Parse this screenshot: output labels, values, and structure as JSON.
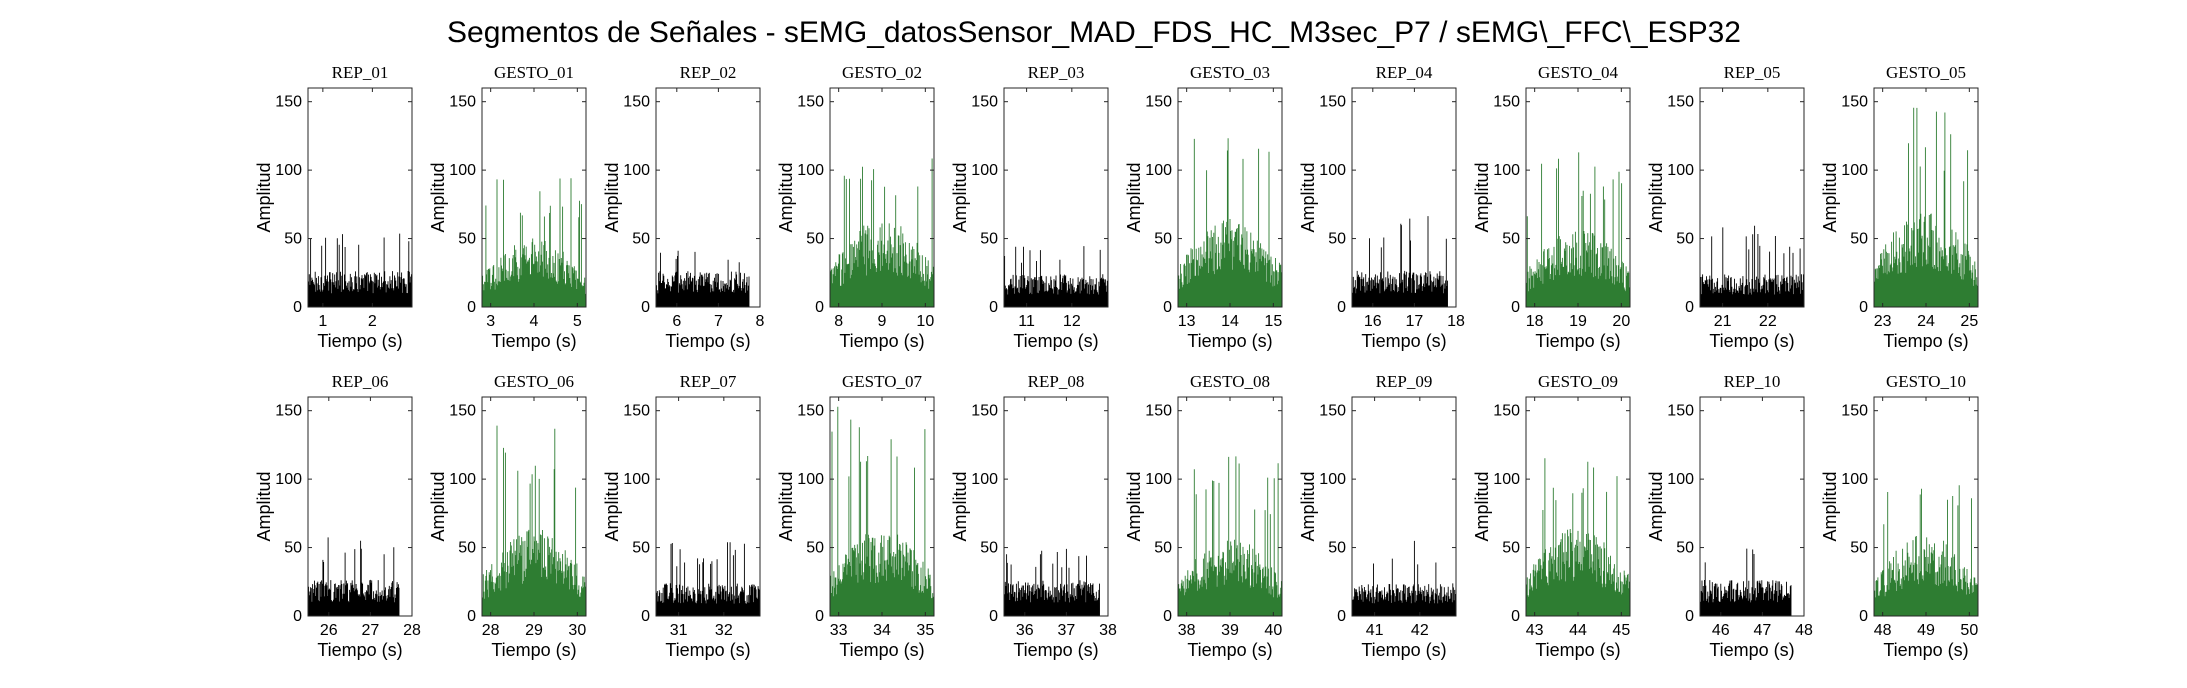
{
  "chart_data": {
    "type": "bar",
    "title": "Segmentos de Señales - sEMG_datosSensor_MAD_FDS_HC_M3sec_P7 / sEMG\\_FFC\\_ESP32",
    "xlabel": "Tiempo (s)",
    "ylabel": "Amplitud",
    "ylim": [
      0,
      160
    ],
    "yticks": [
      0,
      50,
      100,
      150
    ],
    "grid": false,
    "colors": {
      "rep": "#000000",
      "gesto": "#2e7d32"
    },
    "panels": [
      {
        "name": "REP_01",
        "kind": "rep",
        "xlim": [
          0.7,
          2.8
        ],
        "xticks": [
          1,
          2
        ],
        "base": 22,
        "peak": 60,
        "end": 2.8
      },
      {
        "name": "GESTO_01",
        "kind": "gesto",
        "xlim": [
          2.8,
          5.2
        ],
        "xticks": [
          3,
          4,
          5
        ],
        "base": 35,
        "peak": 95,
        "end": 5.2
      },
      {
        "name": "REP_02",
        "kind": "rep",
        "xlim": [
          5.5,
          8.0
        ],
        "xticks": [
          6,
          7,
          8
        ],
        "base": 22,
        "peak": 45,
        "end": 7.75
      },
      {
        "name": "GESTO_02",
        "kind": "gesto",
        "xlim": [
          7.8,
          10.2
        ],
        "xticks": [
          8,
          9,
          10
        ],
        "base": 45,
        "peak": 112,
        "end": 10.2
      },
      {
        "name": "REP_03",
        "kind": "rep",
        "xlim": [
          10.5,
          12.8
        ],
        "xticks": [
          11,
          12
        ],
        "base": 20,
        "peak": 45,
        "end": 12.8
      },
      {
        "name": "GESTO_03",
        "kind": "gesto",
        "xlim": [
          12.8,
          15.2
        ],
        "xticks": [
          13,
          14,
          15
        ],
        "base": 45,
        "peak": 133,
        "end": 15.2
      },
      {
        "name": "REP_04",
        "kind": "rep",
        "xlim": [
          15.5,
          18.0
        ],
        "xticks": [
          16,
          17,
          18
        ],
        "base": 22,
        "peak": 67,
        "end": 17.8
      },
      {
        "name": "GESTO_04",
        "kind": "gesto",
        "xlim": [
          17.8,
          20.2
        ],
        "xticks": [
          18,
          19,
          20
        ],
        "base": 40,
        "peak": 113,
        "end": 20.2
      },
      {
        "name": "REP_05",
        "kind": "rep",
        "xlim": [
          20.5,
          22.8
        ],
        "xticks": [
          21,
          22
        ],
        "base": 20,
        "peak": 60,
        "end": 22.8
      },
      {
        "name": "GESTO_05",
        "kind": "gesto",
        "xlim": [
          22.8,
          25.2
        ],
        "xticks": [
          23,
          24,
          25
        ],
        "base": 50,
        "peak": 148,
        "end": 25.2
      },
      {
        "name": "REP_06",
        "kind": "rep",
        "xlim": [
          25.5,
          28.0
        ],
        "xticks": [
          26,
          27,
          28
        ],
        "base": 22,
        "peak": 60,
        "end": 27.7
      },
      {
        "name": "GESTO_06",
        "kind": "gesto",
        "xlim": [
          27.8,
          30.2
        ],
        "xticks": [
          28,
          29,
          30
        ],
        "base": 45,
        "peak": 140,
        "end": 30.2
      },
      {
        "name": "REP_07",
        "kind": "rep",
        "xlim": [
          30.5,
          32.8
        ],
        "xticks": [
          31,
          32
        ],
        "base": 20,
        "peak": 55,
        "end": 32.8
      },
      {
        "name": "GESTO_07",
        "kind": "gesto",
        "xlim": [
          32.8,
          35.2
        ],
        "xticks": [
          33,
          34,
          35
        ],
        "base": 45,
        "peak": 155,
        "end": 35.2
      },
      {
        "name": "REP_08",
        "kind": "rep",
        "xlim": [
          35.5,
          38.0
        ],
        "xticks": [
          36,
          37,
          38
        ],
        "base": 22,
        "peak": 50,
        "end": 37.8
      },
      {
        "name": "GESTO_08",
        "kind": "gesto",
        "xlim": [
          37.8,
          40.2
        ],
        "xticks": [
          38,
          39,
          40
        ],
        "base": 40,
        "peak": 120,
        "end": 40.2
      },
      {
        "name": "REP_09",
        "kind": "rep",
        "xlim": [
          40.5,
          42.8
        ],
        "xticks": [
          41,
          42
        ],
        "base": 20,
        "peak": 55,
        "end": 42.8
      },
      {
        "name": "GESTO_09",
        "kind": "gesto",
        "xlim": [
          42.8,
          45.2
        ],
        "xticks": [
          43,
          44,
          45
        ],
        "base": 45,
        "peak": 123,
        "end": 45.2
      },
      {
        "name": "REP_10",
        "kind": "rep",
        "xlim": [
          45.5,
          48.0
        ],
        "xticks": [
          46,
          47,
          48
        ],
        "base": 22,
        "peak": 50,
        "end": 47.7
      },
      {
        "name": "GESTO_10",
        "kind": "gesto",
        "xlim": [
          47.8,
          50.2
        ],
        "xticks": [
          48,
          49,
          50
        ],
        "base": 42,
        "peak": 105,
        "end": 50.2
      }
    ]
  }
}
